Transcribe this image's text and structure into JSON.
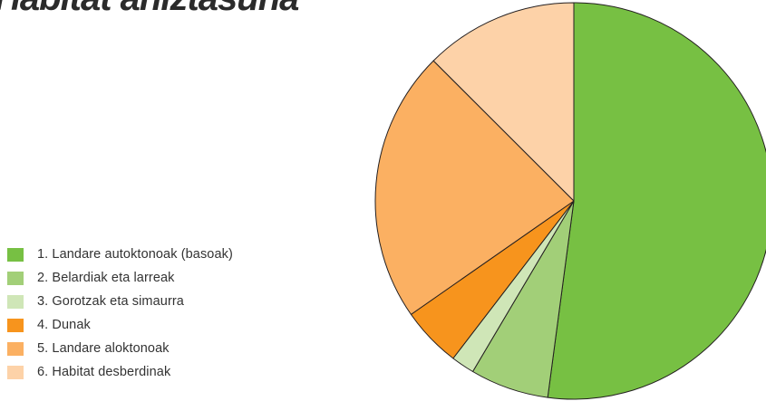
{
  "chart_data": {
    "type": "pie",
    "title": "Habitat aniztasuna",
    "legend_position": "left-bottom",
    "slices": [
      {
        "label": "1. Landare autoktonoak (basoak)",
        "value": 52.1,
        "color": "#77c043"
      },
      {
        "label": "2. Belardiak eta larreak",
        "value": 6.4,
        "color": "#a2cf78"
      },
      {
        "label": "3. Gorotzak eta simaurra",
        "value": 1.9,
        "color": "#cfe6b7"
      },
      {
        "label": "4. Dunak",
        "value": 4.9,
        "color": "#f7941d"
      },
      {
        "label": "5. Landare aloktonoak",
        "value": 22.2,
        "color": "#fbb062"
      },
      {
        "label": "6. Habitat desberdinak",
        "value": 12.5,
        "color": "#fdd2a8"
      }
    ]
  }
}
